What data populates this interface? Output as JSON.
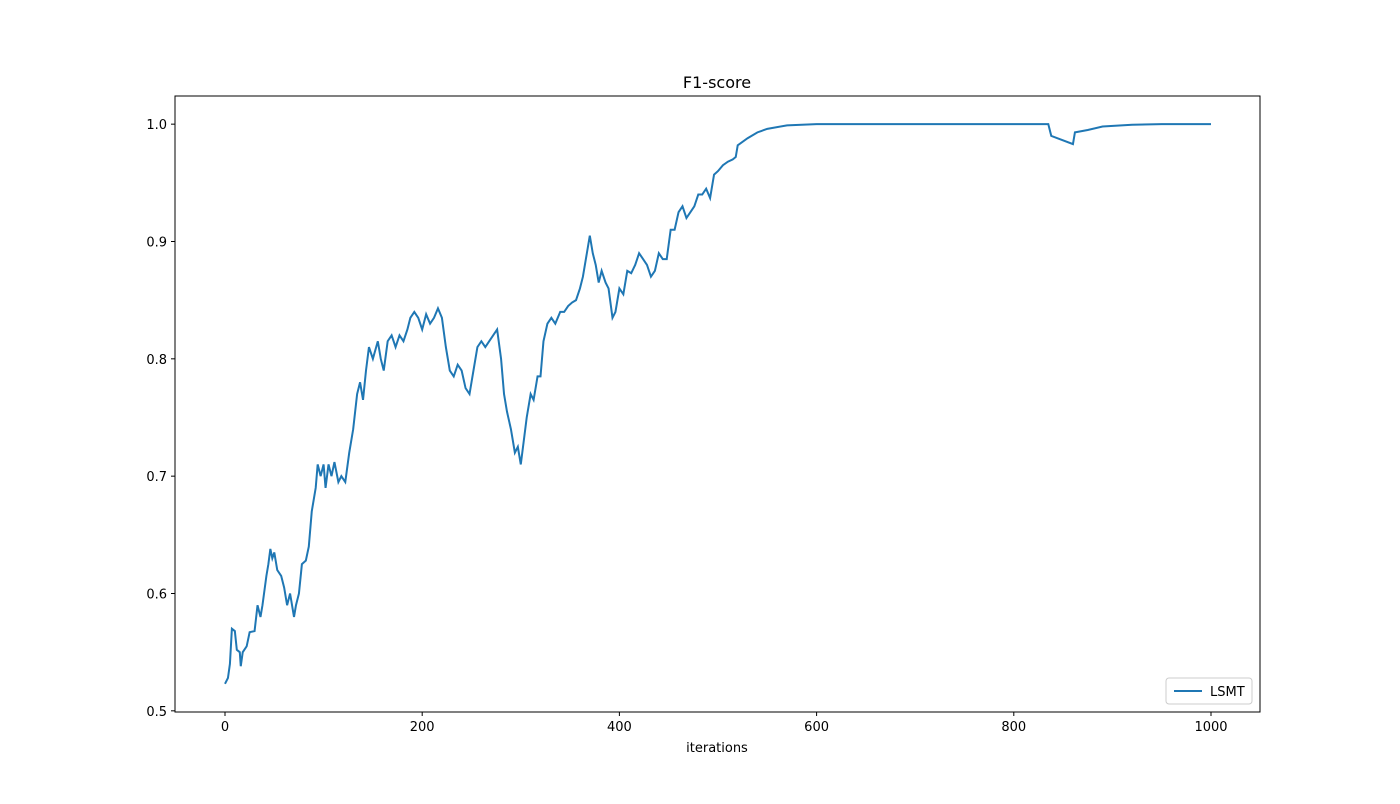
{
  "chart_data": {
    "type": "line",
    "title": "F1-score",
    "x_label": "iterations",
    "x": [
      0,
      3,
      5,
      7,
      10,
      12,
      15,
      16,
      18,
      22,
      25,
      30,
      33,
      36,
      38,
      42,
      44,
      46,
      48,
      50,
      53,
      57,
      60,
      63,
      66,
      70,
      72,
      75,
      78,
      82,
      85,
      88,
      92,
      94,
      97,
      100,
      102,
      105,
      108,
      111,
      115,
      118,
      122,
      126,
      130,
      134,
      137,
      140,
      143,
      146,
      150,
      155,
      158,
      161,
      165,
      169,
      173,
      177,
      181,
      185,
      188,
      192,
      196,
      200,
      204,
      208,
      212,
      216,
      220,
      224,
      228,
      232,
      236,
      240,
      244,
      248,
      252,
      256,
      260,
      264,
      268,
      272,
      276,
      280,
      283,
      286,
      290,
      294,
      297,
      300,
      303,
      306,
      310,
      313,
      317,
      320,
      323,
      327,
      331,
      335,
      340,
      344,
      348,
      352,
      356,
      360,
      363,
      367,
      370,
      373,
      376,
      379,
      382,
      386,
      389,
      393,
      396,
      400,
      404,
      408,
      412,
      416,
      420,
      424,
      428,
      432,
      436,
      440,
      444,
      448,
      452,
      456,
      460,
      464,
      468,
      472,
      476,
      480,
      484,
      488,
      492,
      496,
      500,
      505,
      510,
      515,
      518,
      520,
      530,
      540,
      550,
      570,
      600,
      700,
      800,
      835,
      838,
      860,
      862,
      875,
      890,
      920,
      950,
      1000
    ],
    "series": [
      {
        "name": "LSMT",
        "color": "#1f77b4",
        "values": [
          0.523,
          0.528,
          0.54,
          0.57,
          0.568,
          0.552,
          0.55,
          0.538,
          0.55,
          0.555,
          0.567,
          0.568,
          0.59,
          0.58,
          0.59,
          0.615,
          0.625,
          0.638,
          0.63,
          0.635,
          0.62,
          0.615,
          0.605,
          0.59,
          0.6,
          0.58,
          0.59,
          0.6,
          0.625,
          0.628,
          0.64,
          0.67,
          0.69,
          0.71,
          0.7,
          0.71,
          0.69,
          0.71,
          0.7,
          0.712,
          0.695,
          0.7,
          0.695,
          0.72,
          0.74,
          0.77,
          0.78,
          0.765,
          0.79,
          0.81,
          0.8,
          0.815,
          0.8,
          0.79,
          0.815,
          0.82,
          0.81,
          0.82,
          0.815,
          0.825,
          0.835,
          0.84,
          0.835,
          0.825,
          0.838,
          0.83,
          0.835,
          0.843,
          0.835,
          0.81,
          0.79,
          0.785,
          0.795,
          0.79,
          0.775,
          0.77,
          0.79,
          0.81,
          0.815,
          0.81,
          0.815,
          0.82,
          0.825,
          0.8,
          0.77,
          0.755,
          0.74,
          0.72,
          0.725,
          0.71,
          0.73,
          0.75,
          0.77,
          0.765,
          0.785,
          0.785,
          0.815,
          0.83,
          0.835,
          0.83,
          0.84,
          0.84,
          0.845,
          0.848,
          0.85,
          0.86,
          0.87,
          0.89,
          0.905,
          0.89,
          0.88,
          0.865,
          0.875,
          0.865,
          0.86,
          0.835,
          0.84,
          0.86,
          0.855,
          0.875,
          0.873,
          0.88,
          0.89,
          0.885,
          0.88,
          0.87,
          0.875,
          0.89,
          0.885,
          0.885,
          0.91,
          0.91,
          0.925,
          0.93,
          0.92,
          0.925,
          0.93,
          0.94,
          0.94,
          0.945,
          0.937,
          0.957,
          0.96,
          0.965,
          0.968,
          0.97,
          0.972,
          0.982,
          0.988,
          0.993,
          0.996,
          0.999,
          1.0,
          1.0,
          1.0,
          1.0,
          0.99,
          0.983,
          0.993,
          0.995,
          0.998,
          0.9995,
          1.0,
          1.0
        ]
      }
    ],
    "xlim": [
      -50.7,
      1049.7
    ],
    "ylim": [
      0.499,
      1.024
    ],
    "xticks": [
      0,
      200,
      400,
      600,
      800,
      1000
    ],
    "yticks": [
      0.5,
      0.6,
      0.7,
      0.8,
      0.9,
      {
        "value": 1.0,
        "label": "1.0"
      }
    ],
    "legend": "lower right"
  }
}
